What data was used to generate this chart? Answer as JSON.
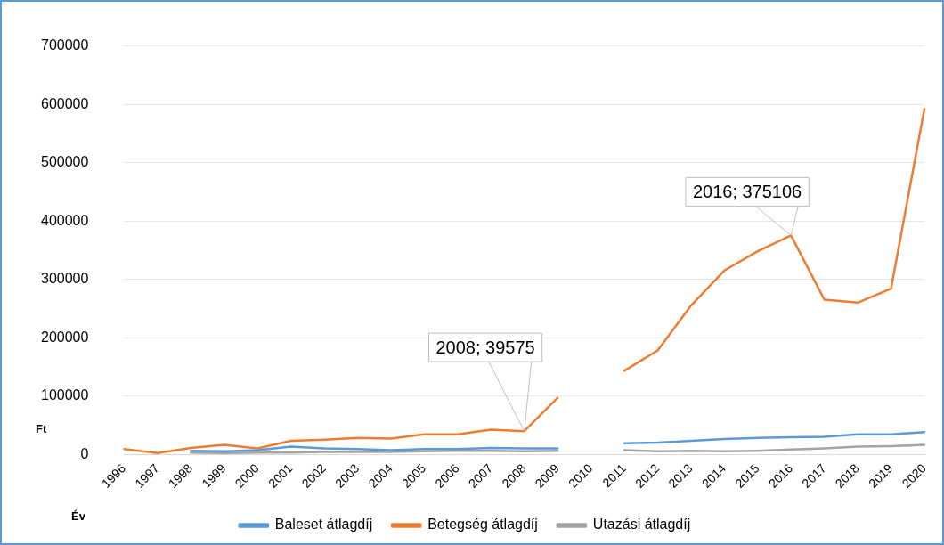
{
  "chart_data": {
    "type": "line",
    "xlabel": "Év",
    "ylabel": "Ft",
    "categories": [
      "1996",
      "1997",
      "1998",
      "1999",
      "2000",
      "2001",
      "2002",
      "2003",
      "2004",
      "2005",
      "2006",
      "2007",
      "2008",
      "2009",
      "2010",
      "2011",
      "2012",
      "2013",
      "2014",
      "2015",
      "2016",
      "2017",
      "2018",
      "2019",
      "2020"
    ],
    "series": [
      {
        "name": "Baleset átlagdíj",
        "color": "#5b9bd5",
        "values": [
          null,
          null,
          6000,
          5000,
          7000,
          13000,
          10000,
          9000,
          7000,
          9000,
          9000,
          11000,
          10000,
          10000,
          null,
          19000,
          20000,
          23000,
          26000,
          28000,
          29000,
          30000,
          34000,
          34000,
          38000
        ]
      },
      {
        "name": "Betegség átlagdíj",
        "color": "#ed7d31",
        "values": [
          9000,
          2000,
          11000,
          16000,
          10000,
          23000,
          25000,
          28000,
          27000,
          34000,
          34000,
          42000,
          39575,
          97000,
          null,
          143000,
          178000,
          255000,
          315000,
          348000,
          375106,
          265000,
          260000,
          284000,
          592000
        ]
      },
      {
        "name": "Utazási átlagdíj",
        "color": "#a5a5a5",
        "values": [
          null,
          null,
          3000,
          2000,
          3000,
          3000,
          4000,
          4000,
          4000,
          5000,
          6000,
          6000,
          5000,
          6000,
          null,
          7000,
          5000,
          6000,
          5000,
          6000,
          8000,
          10000,
          13000,
          14000,
          16000
        ]
      }
    ],
    "ylim": [
      0,
      700000
    ],
    "yticks": [
      0,
      100000,
      200000,
      300000,
      400000,
      500000,
      600000,
      700000
    ],
    "grid": "y",
    "legend": "bottom",
    "marker": "none",
    "line_style": "solid",
    "annotations": [
      {
        "text": "2008; 39575",
        "x": "2008",
        "y": 39575
      },
      {
        "text": "2016; 375106",
        "x": "2016",
        "y": 375106
      }
    ]
  }
}
